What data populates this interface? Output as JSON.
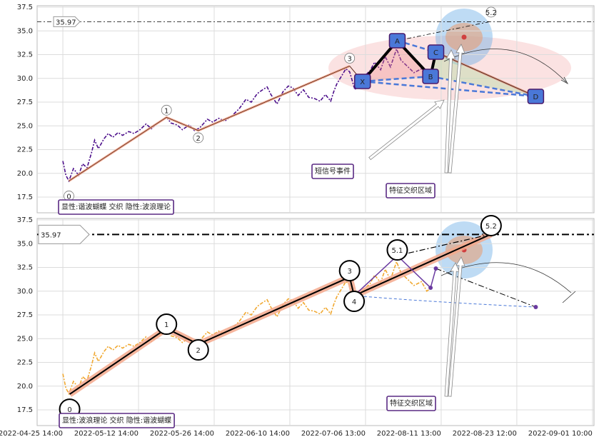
{
  "chart_data": [
    {
      "type": "line",
      "x": [
        0,
        0.04,
        0.08,
        0.14,
        0.21,
        0.26,
        0.32,
        0.38,
        0.42,
        0.47,
        0.54,
        0.6,
        0.66,
        0.73,
        0.79,
        0.87,
        0.94,
        1.02,
        1.1,
        1.17,
        1.25,
        1.32,
        1.37,
        1.43,
        1.51,
        1.58,
        1.67,
        1.74,
        1.81,
        1.91,
        1.98,
        2.06,
        2.14,
        2.24,
        2.33,
        2.42,
        2.49,
        2.57,
        2.64,
        2.7,
        2.75,
        2.83,
        2.91,
        2.98,
        3.04,
        3.11,
        3.18,
        3.25,
        3.32,
        3.4,
        3.47,
        3.54,
        3.58,
        3.62,
        3.68,
        3.74,
        3.79,
        3.86,
        3.92,
        3.98,
        4.06,
        4.12,
        4.2,
        4.26,
        4.33,
        4.41,
        4.47,
        4.55,
        4.64,
        4.74,
        4.81,
        4.86
      ],
      "series": [
        {
          "color": "#4b0d8a",
          "values": [
            21.3,
            19.8,
            19.2,
            20.5,
            19.8,
            21,
            20.6,
            22.2,
            23.5,
            22.6,
            23.6,
            24.2,
            23.8,
            24.3,
            24,
            24.4,
            24.2,
            24.6,
            25.2,
            24.7,
            25.3,
            25.6,
            25.9,
            25.3,
            25.1,
            24.6,
            25.1,
            24.5,
            24.8,
            25.7,
            25.4,
            25.8,
            25.5,
            26.1,
            26.8,
            27.8,
            27.5,
            28.4,
            28.8,
            29.1,
            28.3,
            27.3,
            28.6,
            29.2,
            29,
            28.2,
            28.8,
            28,
            27.9,
            27.6,
            28.3,
            27.6,
            28.6,
            29.4,
            30.2,
            31,
            30.7,
            28.8,
            29.5,
            30.2,
            30.8,
            31.7,
            30.9,
            32.3,
            31.2,
            33.1,
            31.9,
            31.3,
            30.6,
            31,
            30,
            30.3
          ]
        }
      ],
      "xlim": [
        -0.34,
        7.02
      ],
      "ylim": [
        15.85,
        37.65
      ],
      "yticks": [
        17.5,
        {
          "value": 20,
          "label": "20.0"
        },
        22.5,
        {
          "value": 25,
          "label": "25.0"
        },
        27.5,
        {
          "value": 30,
          "label": "30.0"
        },
        32.5,
        {
          "value": 35,
          "label": "35.0"
        },
        37.5
      ],
      "grid": true,
      "hline": 35.97,
      "waves": {
        "labels": [
          "0",
          "1",
          "2",
          "3",
          "5.2"
        ],
        "x": [
          0.08,
          1.37,
          1.79,
          3.79,
          5.66
        ],
        "y": [
          19.2,
          25.9,
          24.5,
          31.3,
          36.0
        ]
      },
      "pattern": {
        "labels": [
          "X",
          "A",
          "B",
          "C",
          "D"
        ],
        "x": [
          3.96,
          4.42,
          4.86,
          4.93,
          6.25
        ],
        "y": [
          29.68,
          33.97,
          30.21,
          32.76,
          28.1
        ]
      },
      "texts": [
        {
          "text": "短信号事件",
          "color": "#d03030"
        },
        {
          "text": "特征交织区域",
          "color": "#1f78b4"
        },
        {
          "text": "显性:谐波蝴蝶 交织 隐性:波浪理论",
          "color": "#1f78b4"
        }
      ]
    },
    {
      "type": "line",
      "x": [
        0,
        0.04,
        0.08,
        0.14,
        0.21,
        0.26,
        0.32,
        0.38,
        0.42,
        0.47,
        0.54,
        0.6,
        0.66,
        0.73,
        0.79,
        0.87,
        0.94,
        1.02,
        1.1,
        1.17,
        1.25,
        1.32,
        1.37,
        1.43,
        1.51,
        1.58,
        1.67,
        1.74,
        1.81,
        1.91,
        1.98,
        2.06,
        2.14,
        2.24,
        2.33,
        2.42,
        2.49,
        2.57,
        2.64,
        2.7,
        2.75,
        2.83,
        2.91,
        2.98,
        3.04,
        3.11,
        3.18,
        3.25,
        3.32,
        3.4,
        3.47,
        3.54,
        3.58,
        3.62,
        3.68,
        3.74,
        3.79,
        3.86,
        3.92,
        3.98,
        4.06,
        4.12,
        4.2,
        4.26,
        4.33,
        4.41,
        4.47,
        4.55,
        4.64,
        4.74,
        4.81,
        4.86
      ],
      "series": [
        {
          "color": "#f0a830",
          "values": [
            21.3,
            19.8,
            19.2,
            20.5,
            19.8,
            21,
            20.6,
            22.2,
            23.5,
            22.6,
            23.6,
            24.2,
            23.8,
            24.3,
            24,
            24.4,
            24.2,
            24.6,
            25.2,
            24.7,
            25.3,
            25.6,
            25.9,
            25.3,
            25.1,
            24.6,
            25.1,
            24.5,
            24.8,
            25.7,
            25.4,
            25.8,
            25.5,
            26.1,
            26.8,
            27.8,
            27.5,
            28.4,
            28.8,
            29.1,
            28.3,
            27.3,
            28.6,
            29.2,
            29,
            28.2,
            28.8,
            28,
            27.9,
            27.6,
            28.3,
            27.6,
            28.6,
            29.4,
            30.2,
            31,
            30.7,
            28.8,
            29.5,
            30.2,
            30.8,
            31.7,
            30.9,
            32.3,
            31.2,
            33.1,
            31.9,
            31.3,
            30.6,
            31,
            30,
            30.3
          ]
        }
      ],
      "xlim": [
        -0.34,
        7.02
      ],
      "xticks": [
        {
          "value": 0,
          "label": "2022-04-25 14:00"
        },
        {
          "value": 1,
          "label": "2022-05-12 14:00"
        },
        {
          "value": 2,
          "label": "2022-05-26 14:00"
        },
        {
          "value": 3,
          "label": "2022-06-10 14:00"
        },
        {
          "value": 4,
          "label": "2022-07-06 13:00"
        },
        {
          "value": 5,
          "label": "2022-08-11 13:00"
        },
        {
          "value": 6,
          "label": "2022-08-23 12:00"
        },
        {
          "value": 7,
          "label": "2022-09-01 10:00"
        }
      ],
      "ylim": [
        15.85,
        37.65
      ],
      "yticks": [
        17.5,
        {
          "value": 20,
          "label": "20.0"
        },
        22.5,
        {
          "value": 25,
          "label": "25.0"
        },
        27.5,
        {
          "value": 30,
          "label": "30.0"
        },
        32.5,
        {
          "value": 35,
          "label": "35.0"
        },
        37.5
      ],
      "grid": true,
      "hline": 35.97,
      "waves": {
        "labels": [
          "0",
          "1",
          "2",
          "3",
          "4",
          "5.1",
          "5.2"
        ],
        "x": [
          0.09,
          1.37,
          1.79,
          3.79,
          3.85,
          4.42,
          5.66
        ],
        "y": [
          19.15,
          26.07,
          24.42,
          31.48,
          29.53,
          33.74,
          36.0
        ]
      },
      "points": {
        "x": [
          4.86,
          4.93,
          6.25
        ],
        "y": [
          30.36,
          32.39,
          28.33
        ]
      },
      "texts": [
        {
          "text": "特征交织区域",
          "color": "#1f78b4"
        },
        {
          "text": "显性:波浪理论 交织 隐性:谐波蝴蝶",
          "color": "#1f78b4"
        }
      ]
    }
  ]
}
